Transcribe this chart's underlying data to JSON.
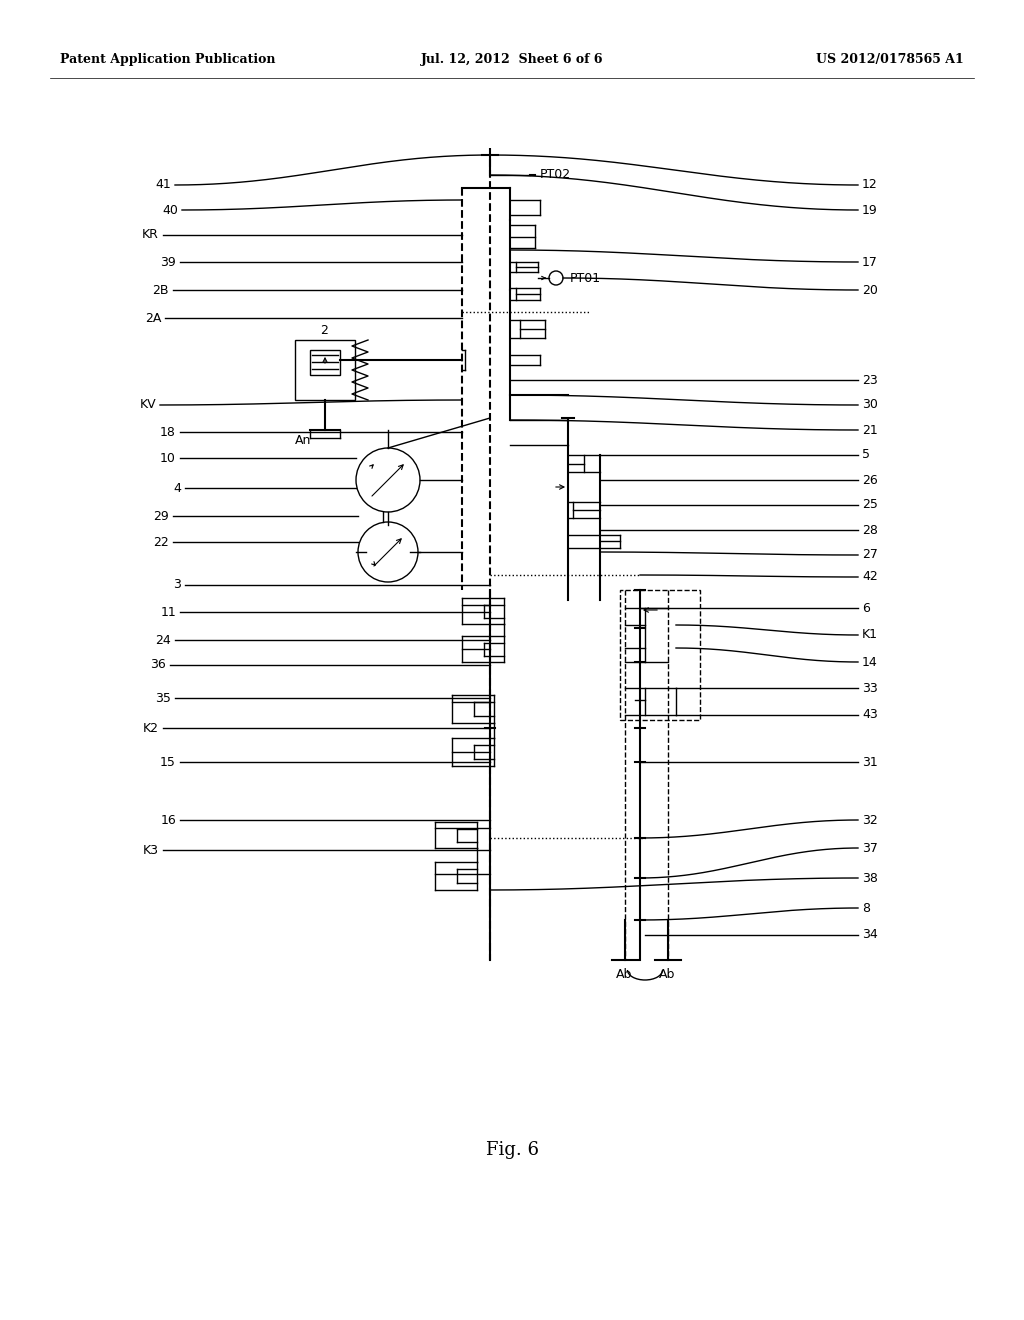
{
  "title": "Fig. 6",
  "header_left": "Patent Application Publication",
  "header_center": "Jul. 12, 2012  Sheet 6 of 6",
  "header_right": "US 2012/0178565 A1",
  "bg_color": "#ffffff",
  "fg_color": "#000000",
  "fig_width": 10.24,
  "fig_height": 13.2,
  "dpi": 100,
  "left_labels": [
    [
      "41",
      155,
      185
    ],
    [
      "40",
      160,
      210
    ],
    [
      "KR",
      143,
      235
    ],
    [
      "39",
      158,
      262
    ],
    [
      "2B",
      153,
      290
    ],
    [
      "2A",
      145,
      318
    ],
    [
      "KV",
      140,
      405
    ],
    [
      "18",
      158,
      432
    ],
    [
      "10",
      158,
      458
    ],
    [
      "4",
      163,
      488
    ],
    [
      "29",
      153,
      516
    ],
    [
      "22",
      153,
      542
    ],
    [
      "3",
      163,
      585
    ],
    [
      "11",
      158,
      612
    ],
    [
      "24",
      153,
      640
    ],
    [
      "36",
      148,
      665
    ],
    [
      "35",
      153,
      698
    ],
    [
      "K2",
      140,
      728
    ],
    [
      "15",
      158,
      762
    ],
    [
      "16",
      158,
      820
    ],
    [
      "K3",
      140,
      850
    ]
  ],
  "right_labels": [
    [
      "12",
      840,
      185
    ],
    [
      "19",
      840,
      210
    ],
    [
      "17",
      840,
      262
    ],
    [
      "20",
      840,
      290
    ],
    [
      "23",
      840,
      380
    ],
    [
      "30",
      840,
      405
    ],
    [
      "21",
      840,
      430
    ],
    [
      "5",
      840,
      455
    ],
    [
      "26",
      840,
      480
    ],
    [
      "25",
      840,
      505
    ],
    [
      "28",
      840,
      530
    ],
    [
      "27",
      840,
      555
    ],
    [
      "42",
      840,
      577
    ],
    [
      "6",
      840,
      608
    ],
    [
      "K1",
      840,
      635
    ],
    [
      "14",
      840,
      662
    ],
    [
      "33",
      840,
      688
    ],
    [
      "43",
      840,
      715
    ],
    [
      "31",
      840,
      762
    ],
    [
      "32",
      840,
      820
    ],
    [
      "37",
      840,
      848
    ],
    [
      "38",
      840,
      878
    ],
    [
      "8",
      840,
      908
    ],
    [
      "34",
      840,
      935
    ]
  ]
}
